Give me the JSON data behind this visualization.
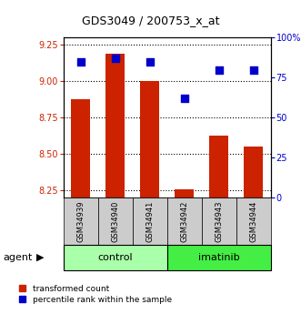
{
  "title": "GDS3049 / 200753_x_at",
  "samples": [
    "GSM34939",
    "GSM34940",
    "GSM34941",
    "GSM34942",
    "GSM34943",
    "GSM34944"
  ],
  "groups": [
    "control",
    "control",
    "control",
    "imatinib",
    "imatinib",
    "imatinib"
  ],
  "transformed_counts": [
    8.88,
    9.19,
    9.0,
    8.26,
    8.63,
    8.55
  ],
  "percentile_ranks": [
    85,
    87,
    85,
    62,
    80,
    80
  ],
  "ylim_left": [
    8.2,
    9.3
  ],
  "ylim_right": [
    0,
    100
  ],
  "yticks_left": [
    8.25,
    8.5,
    8.75,
    9.0,
    9.25
  ],
  "yticks_right": [
    0,
    25,
    50,
    75,
    100
  ],
  "ytick_right_labels": [
    "0",
    "25",
    "50",
    "75",
    "100%"
  ],
  "bar_color": "#cc2200",
  "dot_color": "#0000cc",
  "control_color": "#aaffaa",
  "imatinib_color": "#44ee44",
  "sample_bg_color": "#cccccc",
  "left_axis_color": "#cc2200",
  "right_axis_color": "#0000cc",
  "bar_width": 0.55,
  "dot_size": 28,
  "title_fontsize": 9,
  "tick_fontsize": 7,
  "sample_fontsize": 6,
  "group_fontsize": 8,
  "legend_fontsize": 6.5,
  "agent_fontsize": 8
}
